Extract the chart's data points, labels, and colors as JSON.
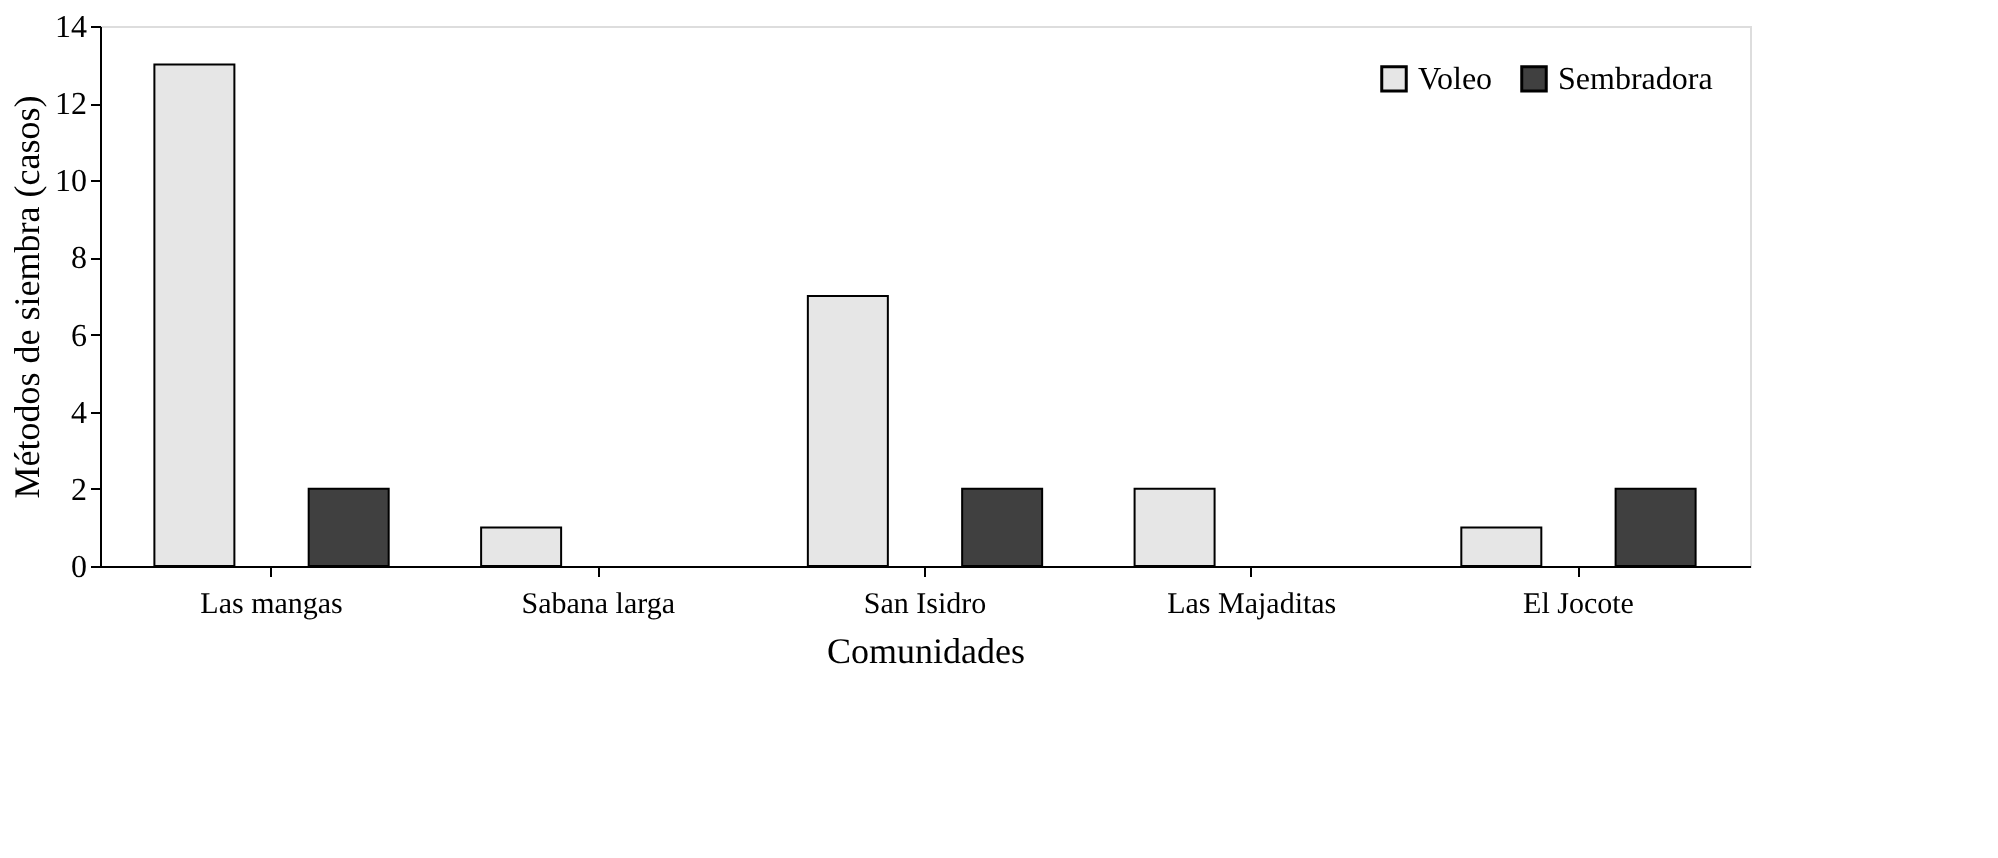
{
  "chart_data": {
    "type": "bar",
    "xlabel": "Comunidades",
    "ylabel": "Métodos de siembra (casos)",
    "categories": [
      "Las mangas",
      "Sabana larga",
      "San Isidro",
      "Las Majaditas",
      "El Jocote"
    ],
    "series": [
      {
        "name": "Voleo",
        "color": "#e6e6e6",
        "values": [
          13,
          1,
          7,
          2,
          1
        ]
      },
      {
        "name": "Sembradora",
        "color": "#404040",
        "values": [
          2,
          null,
          2,
          null,
          2
        ]
      }
    ],
    "ylim": [
      0,
      14
    ],
    "yticks": [
      0,
      2,
      4,
      6,
      8,
      10,
      12,
      14
    ],
    "grid": false,
    "legend": "top right"
  }
}
